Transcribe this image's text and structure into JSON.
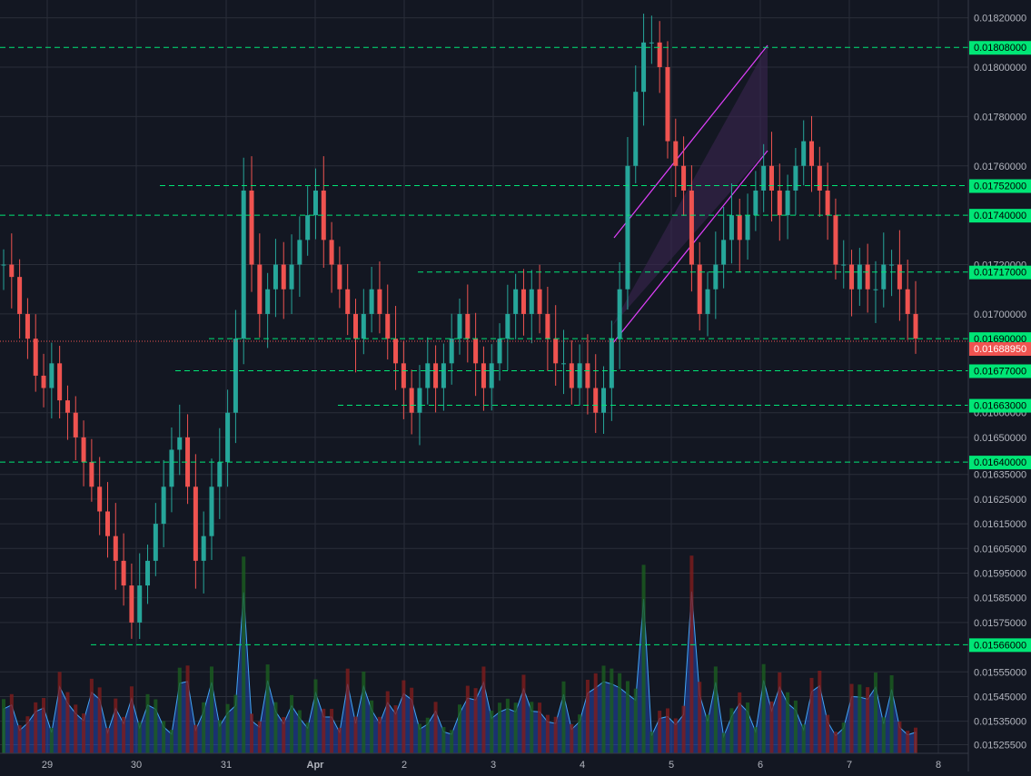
{
  "chart_data": {
    "type": "candlestick",
    "instrument_quote_precision": 8,
    "x_axis": {
      "tick_labels": [
        "29",
        "30",
        "31",
        "Apr",
        "2",
        "3",
        "4",
        "5",
        "6",
        "7",
        "8"
      ]
    },
    "y_axis": {
      "range": [
        0.01522,
        0.01825
      ],
      "tick_labels": [
        "0.01820000",
        "0.01800000",
        "0.01780000",
        "0.01760000",
        "0.01720000",
        "0.01700000",
        "0.01660000",
        "0.01650000",
        "0.01635000",
        "0.01625000",
        "0.01615000",
        "0.01605000",
        "0.01595000",
        "0.01585000",
        "0.01575000",
        "0.01555000",
        "0.01545000",
        "0.01535000",
        "0.01525500"
      ],
      "tick_values": [
        0.0182,
        0.018,
        0.0178,
        0.0176,
        0.0172,
        0.017,
        0.0166,
        0.0165,
        0.01635,
        0.01625,
        0.01615,
        0.01605,
        0.01595,
        0.01585,
        0.01575,
        0.01555,
        0.01545,
        0.01535,
        0.015255
      ]
    },
    "horizontal_levels": [
      {
        "label": "0.01808000",
        "value": 0.01808,
        "color": "#00e676"
      },
      {
        "label": "0.01752000",
        "value": 0.01752,
        "color": "#00e676"
      },
      {
        "label": "0.01740000",
        "value": 0.0174,
        "color": "#00e676"
      },
      {
        "label": "0.01717000",
        "value": 0.01717,
        "color": "#00e676"
      },
      {
        "label": "0.01690000",
        "value": 0.0169,
        "color": "#00e676"
      },
      {
        "label": "0.01677000",
        "value": 0.01677,
        "color": "#00e676"
      },
      {
        "label": "0.01663000",
        "value": 0.01663,
        "color": "#00e676"
      },
      {
        "label": "0.01640000",
        "value": 0.0164,
        "color": "#00e676"
      },
      {
        "label": "0.01566000",
        "value": 0.01566,
        "color": "#00e676"
      }
    ],
    "current_price": {
      "label": "0.01688950",
      "value": 0.0168895,
      "color": "#ef5350"
    },
    "channel": {
      "color": "#e040fb",
      "fill": "#3a2450"
    },
    "colors": {
      "up": "#26a69a",
      "down": "#ef5350",
      "volume_area": "#2962ff"
    },
    "grid": true,
    "series": [
      {
        "name": "",
        "values": [
          0.0172,
          0.01715,
          0.017,
          0.0169,
          0.01675,
          0.0167,
          0.0168,
          0.01665,
          0.0166,
          0.0165,
          0.0164,
          0.0163,
          0.0162,
          0.0161,
          0.016,
          0.0159,
          0.01575,
          0.0159,
          0.016,
          0.01615,
          0.0163,
          0.01645,
          0.0165,
          0.0163,
          0.016,
          0.0161,
          0.0163,
          0.0164,
          0.0166,
          0.0169,
          0.0175,
          0.0172,
          0.017,
          0.0171,
          0.0172,
          0.0171,
          0.0172,
          0.0173,
          0.0174,
          0.0175,
          0.0173,
          0.0172,
          0.0171,
          0.017,
          0.0169,
          0.017,
          0.0171,
          0.017,
          0.0169,
          0.0168,
          0.0167,
          0.0166,
          0.0167,
          0.0168,
          0.0167,
          0.0168,
          0.0169,
          0.017,
          0.0169,
          0.0168,
          0.0167,
          0.0168,
          0.0169,
          0.017,
          0.0171,
          0.017,
          0.0171,
          0.017,
          0.0169,
          0.0168,
          0.0168,
          0.0167,
          0.0168,
          0.0167,
          0.0166,
          0.0167,
          0.0169,
          0.0171,
          0.0176,
          0.0179,
          0.0181,
          0.0181,
          0.018,
          0.0177,
          0.0176,
          0.0175,
          0.0172,
          0.017,
          0.0171,
          0.0172,
          0.0173,
          0.0174,
          0.0173,
          0.0174,
          0.0175,
          0.0176,
          0.0175,
          0.0174,
          0.0175,
          0.0176,
          0.0177,
          0.0176,
          0.0175,
          0.0174,
          0.0172,
          0.0172,
          0.0171,
          0.0172,
          0.0171,
          0.0171,
          0.0172,
          0.0172,
          0.0171,
          0.017,
          0.0169
        ]
      }
    ]
  }
}
